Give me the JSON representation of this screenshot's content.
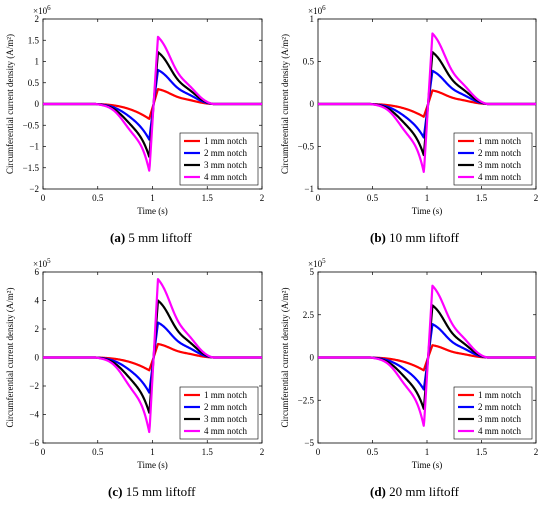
{
  "legend_labels": [
    "1 mm notch",
    "2 mm notch",
    "3 mm notch",
    "4 mm notch"
  ],
  "series_colors": [
    "#ff0000",
    "#0000ff",
    "#000000",
    "#ff00ff"
  ],
  "captions": [
    {
      "letter": "(a)",
      "text": " 5 mm liftoff"
    },
    {
      "letter": "(b)",
      "text": " 10 mm liftoff"
    },
    {
      "letter": "(c)",
      "text": " 15 mm liftoff"
    },
    {
      "letter": "(d)",
      "text": " 20 mm liftoff"
    }
  ],
  "chart_data": [
    {
      "type": "line",
      "xlabel": "Time (s)",
      "ylabel": "Circumferential current density (A/m²)",
      "xlim": [
        0,
        2
      ],
      "ylim": [
        -2,
        2
      ],
      "xticks": [
        0,
        0.5,
        1,
        1.5,
        2
      ],
      "xtick_labels": [
        "0",
        "0.5",
        "1",
        "1.5",
        "2"
      ],
      "yticks": [
        -2,
        -1.5,
        -1,
        -0.5,
        0,
        0.5,
        1,
        1.5,
        2
      ],
      "ytick_labels": [
        "−2",
        "−1.5",
        "−1",
        "−0.5",
        "0",
        "0.5",
        "1",
        "1.5",
        "2"
      ],
      "exponent_label": "×10",
      "exponent_power": "6",
      "legend_position": "lower-right",
      "peaks": [
        {
          "min": -0.35,
          "max": 0.35
        },
        {
          "min": -0.85,
          "max": 0.8
        },
        {
          "min": -1.28,
          "max": 1.22
        },
        {
          "min": -1.65,
          "max": 1.58
        }
      ]
    },
    {
      "type": "line",
      "xlabel": "Time (s)",
      "ylabel": "Circumferential current density (A/m²)",
      "xlim": [
        0,
        2
      ],
      "ylim": [
        -1,
        1
      ],
      "xticks": [
        0,
        0.5,
        1,
        1.5,
        2
      ],
      "xtick_labels": [
        "0",
        "0.5",
        "1",
        "1.5",
        "2"
      ],
      "yticks": [
        -1,
        -0.5,
        0,
        0.5,
        1
      ],
      "ytick_labels": [
        "−1",
        "−0.5",
        "0",
        "0.5",
        "1"
      ],
      "exponent_label": "×10",
      "exponent_power": "6",
      "legend_position": "lower-right",
      "peaks": [
        {
          "min": -0.15,
          "max": 0.16
        },
        {
          "min": -0.4,
          "max": 0.39
        },
        {
          "min": -0.62,
          "max": 0.61
        },
        {
          "min": -0.84,
          "max": 0.83
        }
      ]
    },
    {
      "type": "line",
      "xlabel": "Time (s)",
      "ylabel": "Circumferential current density (A/m²)",
      "xlim": [
        0,
        2
      ],
      "ylim": [
        -6,
        6
      ],
      "xticks": [
        0,
        0.5,
        1,
        1.5,
        2
      ],
      "xtick_labels": [
        "0",
        "0.5",
        "1",
        "1.5",
        "2"
      ],
      "yticks": [
        -6,
        -4,
        -2,
        0,
        2,
        4,
        6
      ],
      "ytick_labels": [
        "−6",
        "−4",
        "−2",
        "0",
        "2",
        "4",
        "6"
      ],
      "exponent_label": "×10",
      "exponent_power": "5",
      "legend_position": "lower-right",
      "peaks": [
        {
          "min": -0.9,
          "max": 0.95
        },
        {
          "min": -2.5,
          "max": 2.45
        },
        {
          "min": -4.0,
          "max": 4.0
        },
        {
          "min": -5.5,
          "max": 5.5
        }
      ]
    },
    {
      "type": "line",
      "xlabel": "Time (s)",
      "ylabel": "Circumferential current density (A/m²)",
      "xlim": [
        0,
        2
      ],
      "ylim": [
        -5,
        5
      ],
      "xticks": [
        0,
        0.5,
        1,
        1.5,
        2
      ],
      "xtick_labels": [
        "0",
        "0.5",
        "1",
        "1.5",
        "2"
      ],
      "yticks": [
        -5,
        -2.5,
        0,
        2.5,
        5
      ],
      "ytick_labels": [
        "−5",
        "−2.5",
        "0",
        "2.5",
        "5"
      ],
      "exponent_label": "×10",
      "exponent_power": "5",
      "legend_position": "lower-right",
      "peaks": [
        {
          "min": -0.75,
          "max": 0.72
        },
        {
          "min": -1.9,
          "max": 1.95
        },
        {
          "min": -3.1,
          "max": 3.05
        },
        {
          "min": -4.2,
          "max": 4.2
        }
      ]
    }
  ]
}
